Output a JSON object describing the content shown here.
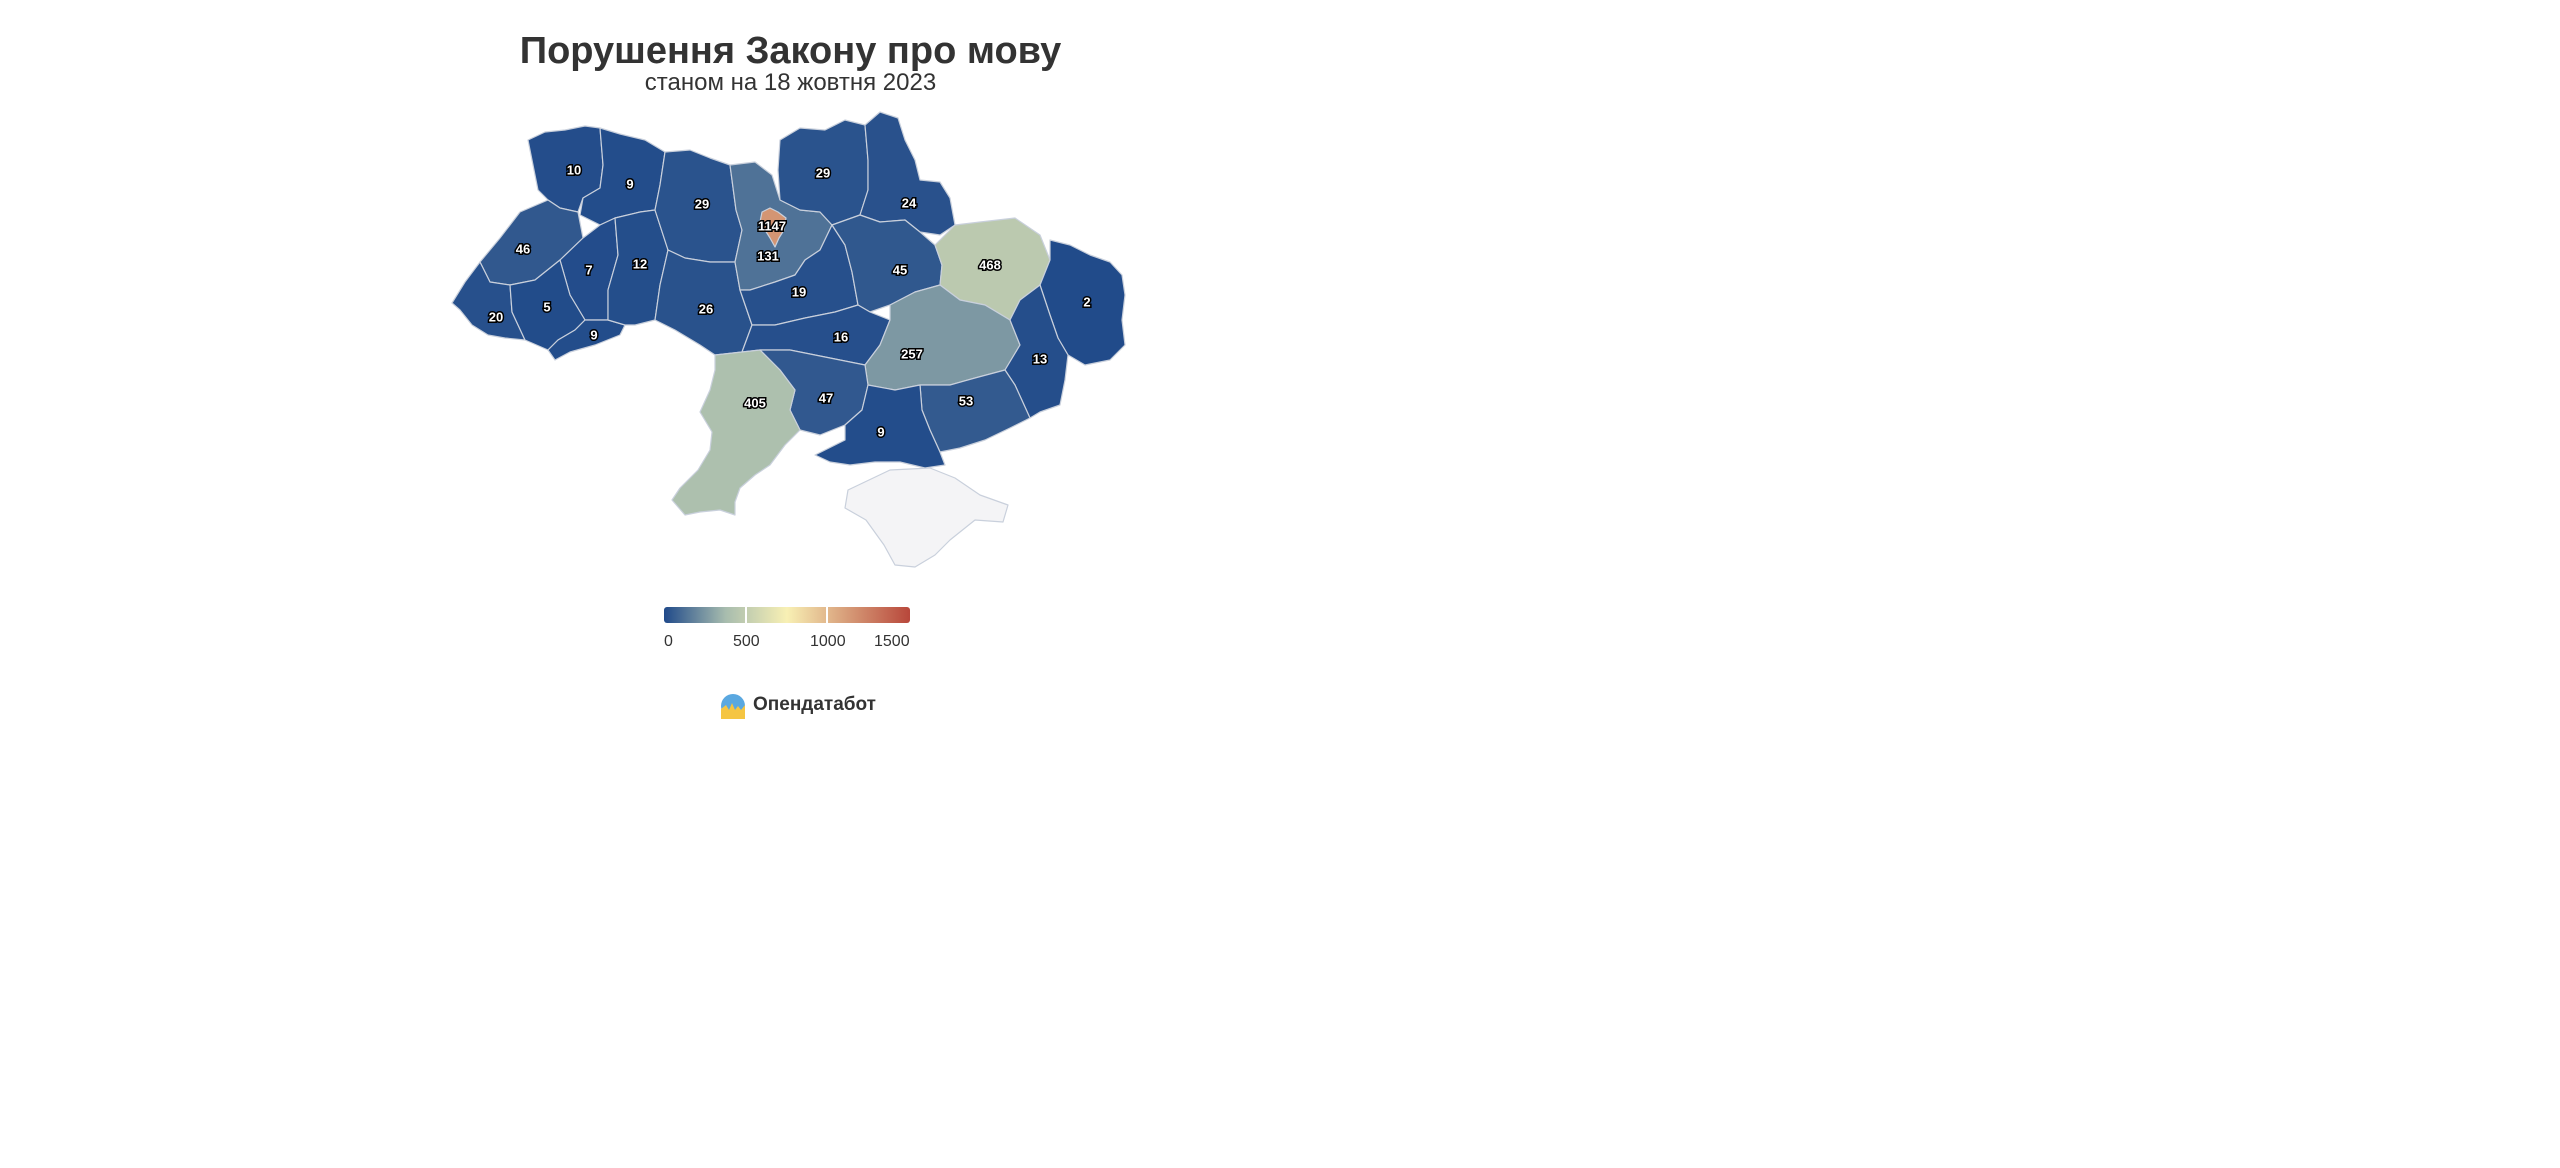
{
  "title": "Порушення Закону про мову",
  "subtitle": "станом на 18 жовтня 2023",
  "brand": {
    "name": "Опендатабот",
    "logo_icon": "opendatabot-sun-logo-icon"
  },
  "legend": {
    "min": 0,
    "max": 1500,
    "tick_labels": [
      "0",
      "500",
      "1000",
      "1500"
    ],
    "colors": [
      "#204a8a",
      "#a7bcae",
      "#f8f0b4",
      "#d69a77",
      "#b8473b"
    ]
  },
  "no_data_color": "#f4f4f6",
  "regions": [
    {
      "id": "volyn",
      "value": "10"
    },
    {
      "id": "rivne",
      "value": "9"
    },
    {
      "id": "zhytomyr",
      "value": "29"
    },
    {
      "id": "kyiv-oblast",
      "value": "131"
    },
    {
      "id": "kyiv-city",
      "value": "1147"
    },
    {
      "id": "chernihiv",
      "value": "29"
    },
    {
      "id": "sumy",
      "value": "24"
    },
    {
      "id": "lviv",
      "value": "46"
    },
    {
      "id": "ternopil",
      "value": "7"
    },
    {
      "id": "khmelnytskyi",
      "value": "12"
    },
    {
      "id": "vinnytsia",
      "value": "26"
    },
    {
      "id": "cherkasy",
      "value": "19"
    },
    {
      "id": "poltava",
      "value": "45"
    },
    {
      "id": "kharkiv",
      "value": "468"
    },
    {
      "id": "luhansk",
      "value": "2"
    },
    {
      "id": "zakarpattia",
      "value": "20"
    },
    {
      "id": "ivano-frankivsk",
      "value": "5"
    },
    {
      "id": "chernivtsi",
      "value": "9"
    },
    {
      "id": "kirovohrad",
      "value": "16"
    },
    {
      "id": "dnipropetrovsk",
      "value": "257"
    },
    {
      "id": "donetsk",
      "value": "13"
    },
    {
      "id": "odesa",
      "value": "405"
    },
    {
      "id": "mykolaiv",
      "value": "47"
    },
    {
      "id": "kherson",
      "value": "9"
    },
    {
      "id": "zaporizhzhia",
      "value": "53"
    },
    {
      "id": "crimea",
      "value": ""
    }
  ]
}
